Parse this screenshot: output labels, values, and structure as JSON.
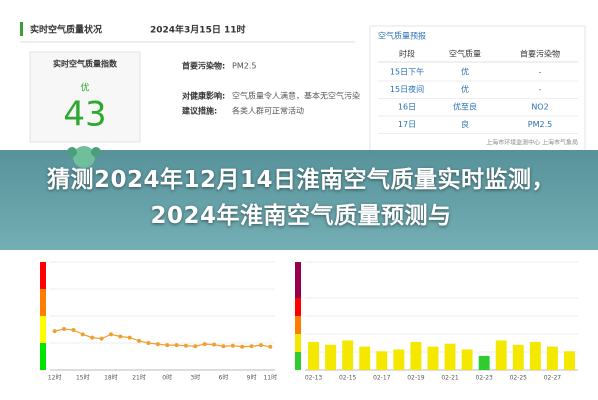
{
  "header": {
    "title": "实时空气质量状况",
    "time": "2024年3月15日 11时"
  },
  "aqi_box": {
    "label": "实时空气质量指数",
    "level": "优",
    "value": 43
  },
  "details": [
    {
      "label": "首要污染物:",
      "text": "PM2.5"
    },
    {
      "label": "对健康影响:",
      "text": "空气质量令人满意，基本无空气污染"
    },
    {
      "label": "建议措施:",
      "text": "各类人群可正常活动"
    }
  ],
  "forecast": {
    "title": "空气质量预报",
    "columns": [
      "时段",
      "空气质量",
      "首要污染物"
    ],
    "rows": [
      [
        "15日下午",
        "优",
        "-"
      ],
      [
        "15日夜间",
        "优",
        "-"
      ],
      [
        "16日",
        "优至良",
        "NO2"
      ],
      [
        "17日",
        "良",
        "PM2.5"
      ]
    ],
    "source": "上海市环境监测中心 上海市气象局"
  },
  "banner": "猜测2024年12月14日淮南空气质量实时监测，2024年淮南空气质量预测与",
  "chart_data": [
    {
      "type": "line",
      "color": "#f0a030",
      "categories": [
        "12时",
        null,
        null,
        "15时",
        null,
        null,
        "18时",
        null,
        null,
        "21时",
        null,
        null,
        "0时",
        null,
        null,
        "3时",
        null,
        null,
        "6时",
        null,
        null,
        "9时",
        null,
        "11时"
      ],
      "values": [
        72,
        76,
        74,
        66,
        60,
        58,
        66,
        62,
        60,
        54,
        50,
        48,
        46,
        46,
        45,
        44,
        48,
        47,
        44,
        45,
        43,
        44,
        46,
        43
      ],
      "ylim": [
        0,
        200
      ],
      "bands": [
        {
          "max": 50,
          "color": "#00e400"
        },
        {
          "max": 100,
          "color": "#ffff00"
        },
        {
          "max": 150,
          "color": "#ff7e00"
        },
        {
          "max": 200,
          "color": "#ff0000"
        }
      ]
    },
    {
      "type": "bar",
      "categories": [
        "02-13",
        null,
        "02-15",
        null,
        "02-17",
        null,
        "02-19",
        null,
        "02-21",
        null,
        "02-23",
        null,
        "02-25",
        null,
        "02-27",
        null
      ],
      "values": [
        78,
        70,
        82,
        65,
        52,
        57,
        78,
        65,
        73,
        57,
        39,
        82,
        70,
        78,
        65,
        52
      ],
      "ylim": [
        0,
        300
      ],
      "bands": [
        {
          "max": 50,
          "color": "#2fcc2f"
        },
        {
          "max": 100,
          "color": "#f5e800"
        },
        {
          "max": 150,
          "color": "#ff7e00"
        },
        {
          "max": 200,
          "color": "#ff0000"
        },
        {
          "max": 300,
          "color": "#99004c"
        }
      ]
    }
  ]
}
